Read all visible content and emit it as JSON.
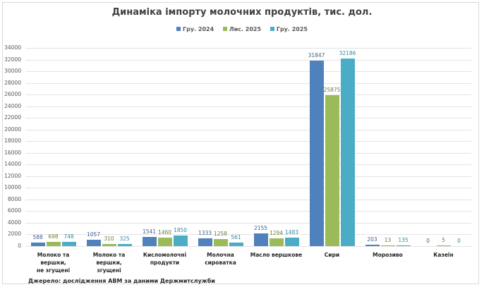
{
  "chart_data": {
    "type": "bar",
    "title": "Динаміка імпорту молочних продуктів, тис. дол.",
    "xlabel": "",
    "ylabel": "",
    "ylim": [
      0,
      34000
    ],
    "yticks": [
      0,
      2000,
      4000,
      6000,
      8000,
      10000,
      12000,
      14000,
      16000,
      18000,
      20000,
      22000,
      24000,
      26000,
      28000,
      30000,
      32000,
      34000
    ],
    "grid": true,
    "legend_position": "top",
    "categories": [
      "Молоко та вершки, не згущені",
      "Молоко та вершки, згущені",
      "Кисломолочні продукти",
      "Молочна сироватка",
      "Масло вершкове",
      "Сири",
      "Морозиво",
      "Казеїн"
    ],
    "category_lines": [
      [
        "Молоко та вершки,",
        "не згущені"
      ],
      [
        "Молоко та вершки,",
        "згущені"
      ],
      [
        "Кисломолочні",
        "продукти"
      ],
      [
        "Молочна",
        "сироватка"
      ],
      [
        "Масло вершкове"
      ],
      [
        "Сири"
      ],
      [
        "Морозиво"
      ],
      [
        "Казеїн"
      ]
    ],
    "series": [
      {
        "name": "Гру. 2024",
        "color": "#4F81BD",
        "label_color": "#3F5F8F",
        "values": [
          588,
          1057,
          1541,
          1333,
          2155,
          31847,
          203,
          0
        ]
      },
      {
        "name": "Лис. 2025",
        "color": "#9BBB59",
        "label_color": "#6B7F3A",
        "values": [
          698,
          310,
          1460,
          1258,
          1294,
          25875,
          13,
          5
        ]
      },
      {
        "name": "Гру. 2025",
        "color": "#4BACC6",
        "label_color": "#2F8AA3",
        "values": [
          748,
          325,
          1850,
          561,
          1483,
          32186,
          135,
          0
        ]
      }
    ]
  },
  "source_note": "Джерело: дослідження АВМ за даними Держмитслужби"
}
